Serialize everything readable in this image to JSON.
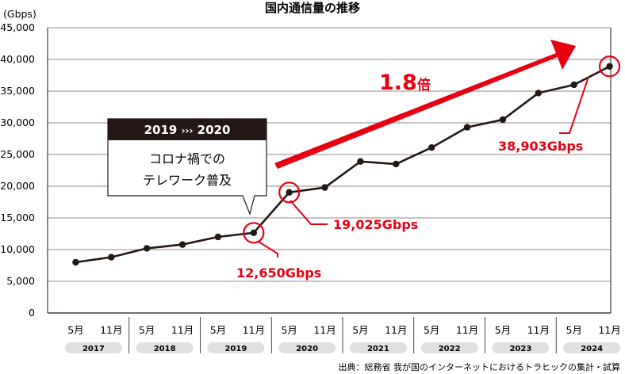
{
  "chart_data": {
    "type": "line",
    "title": "国内通信量の推移",
    "unit_label": "(Gbps)",
    "ylim": [
      0,
      45000
    ],
    "yticks": [
      {
        "value": 0,
        "label": "0"
      },
      {
        "value": 5000,
        "label": "5,000"
      },
      {
        "value": 10000,
        "label": "10,000"
      },
      {
        "value": 15000,
        "label": "15,000"
      },
      {
        "value": 20000,
        "label": "20,000"
      },
      {
        "value": 25000,
        "label": "25,000"
      },
      {
        "value": 30000,
        "label": "30,000"
      },
      {
        "value": 35000,
        "label": "35,000"
      },
      {
        "value": 40000,
        "label": "40,000"
      },
      {
        "value": 45000,
        "label": "45,000"
      }
    ],
    "categories": [
      "5月",
      "11月",
      "5月",
      "11月",
      "5月",
      "11月",
      "5月",
      "11月",
      "5月",
      "11月",
      "5月",
      "11月",
      "5月",
      "11月",
      "5月",
      "11月"
    ],
    "years": [
      "2017",
      "2018",
      "2019",
      "2020",
      "2021",
      "2022",
      "2023",
      "2024"
    ],
    "series": [
      {
        "values": [
          8000,
          8800,
          10200,
          10800,
          12000,
          12650,
          19025,
          19800,
          23900,
          23500,
          26100,
          29300,
          30500,
          34700,
          36000,
          38903
        ]
      }
    ],
    "highlights": [
      {
        "index": 5,
        "label": "12,650Gbps"
      },
      {
        "index": 6,
        "label": "19,025Gbps"
      },
      {
        "index": 15,
        "label": "38,903Gbps"
      }
    ],
    "trend_label": {
      "number": "1.8",
      "suffix": "倍"
    },
    "callout": {
      "header_from": "2019",
      "header_arrows": "›››",
      "header_to": "2020",
      "line1": "コロナ禍での",
      "line2": "テレワーク普及"
    },
    "source": "出典：総務省 我が国のインターネットにおけるトラヒックの集計・試算"
  },
  "colors": {
    "accent": "#e60012",
    "line": "#231815",
    "grid": "#231815",
    "year_badge": "#e0e0e0",
    "callout_header": "#231815"
  }
}
